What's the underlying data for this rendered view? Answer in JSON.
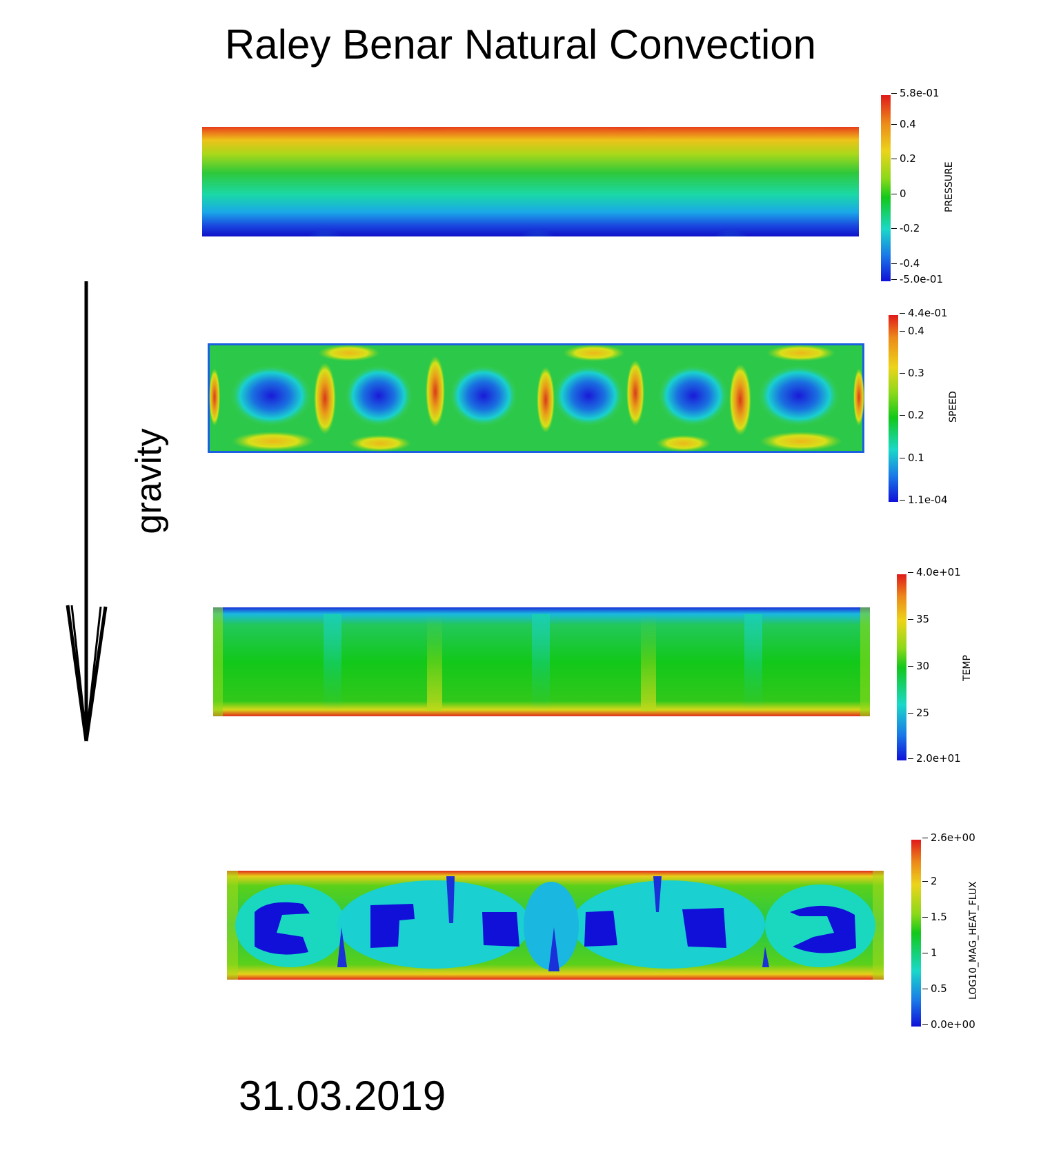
{
  "title": "Raley Benar Natural Convection",
  "gravity_label": "gravity",
  "date": "31.03.2019",
  "colorbars": {
    "pressure": {
      "label": "PRESSURE",
      "ticks": [
        "5.8e-01",
        "0.4",
        "0.2",
        "0",
        "-0.2",
        "-0.4",
        "-5.0e-01"
      ]
    },
    "speed": {
      "label": "SPEED",
      "ticks": [
        "4.4e-01",
        "0.4",
        "0.3",
        "0.2",
        "0.1",
        "1.1e-04"
      ]
    },
    "temp": {
      "label": "TEMP",
      "ticks": [
        "4.0e+01",
        "35",
        "30",
        "25",
        "2.0e+01"
      ]
    },
    "heat_flux": {
      "label": "LOG10_MAG_HEAT_FLUX",
      "ticks": [
        "2.6e+00",
        "2",
        "1.5",
        "1",
        "0.5",
        "0.0e+00"
      ]
    }
  },
  "colors": {
    "jet_red": "#e8261a",
    "jet_yellow": "#ece01a",
    "jet_green": "#12c81a",
    "jet_cyan": "#1ad8d8",
    "jet_blue": "#1010d8"
  }
}
